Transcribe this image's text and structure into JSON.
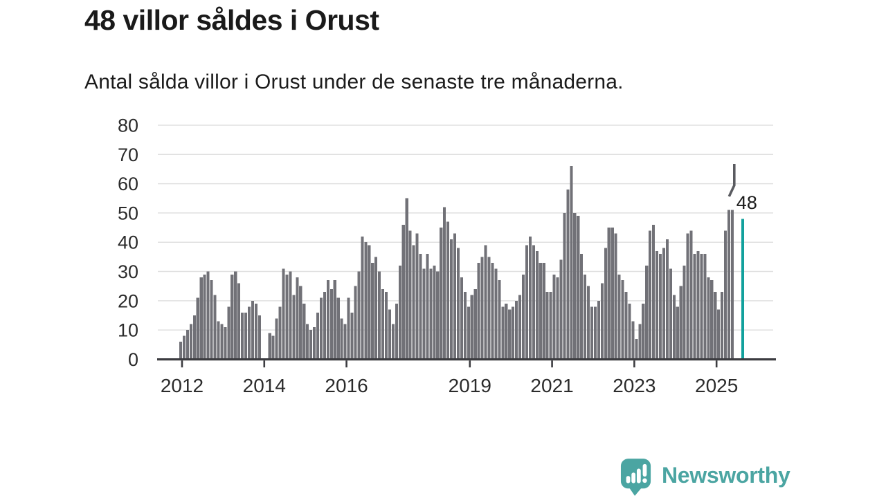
{
  "header": {
    "title": "48 villor såldes i Orust",
    "subtitle": "Antal sålda villor i Orust under de senaste tre månaderna."
  },
  "colors": {
    "background": "#ffffff",
    "bar": "#717177",
    "highlight": "#12a19d",
    "brand": "#4ba5a2",
    "grid": "#e0e0e0",
    "axis": "#3c3c40",
    "text": "#1a1a1a",
    "axis_label": "#2b2b2b",
    "annotation_line": "#5a5b60"
  },
  "chart_data": {
    "type": "bar",
    "title": "48 villor såldes i Orust",
    "subtitle": "Antal sålda villor i Orust under de senaste tre månaderna.",
    "xlabel": "",
    "ylabel": "",
    "grid": true,
    "ylim": [
      0,
      80
    ],
    "y_ticks": [
      0,
      10,
      20,
      30,
      40,
      50,
      60,
      70,
      80
    ],
    "x_tick_years": [
      2012,
      2014,
      2016,
      2019,
      2021,
      2023,
      2025
    ],
    "start_year": 2012,
    "frequency": "monthly",
    "monthly_values": [
      6,
      8,
      10,
      12,
      15,
      21,
      28,
      29,
      30,
      27,
      22,
      13,
      12,
      11,
      18,
      29,
      30,
      26,
      16,
      16,
      18,
      20,
      19,
      15,
      null,
      null,
      9,
      8,
      14,
      18,
      31,
      29,
      30,
      22,
      28,
      25,
      19,
      12,
      10,
      11,
      16,
      21,
      23,
      27,
      24,
      27,
      21,
      14,
      12,
      21,
      16,
      25,
      30,
      42,
      40,
      39,
      33,
      35,
      30,
      24,
      23,
      17,
      12,
      19,
      32,
      46,
      55,
      44,
      39,
      43,
      36,
      31,
      36,
      31,
      32,
      30,
      45,
      52,
      47,
      41,
      43,
      38,
      28,
      23,
      18,
      22,
      24,
      33,
      35,
      39,
      35,
      33,
      31,
      27,
      18,
      19,
      17,
      18,
      20,
      22,
      29,
      39,
      42,
      39,
      37,
      33,
      33,
      23,
      23,
      29,
      28,
      34,
      50,
      58,
      66,
      50,
      49,
      36,
      29,
      25,
      18,
      18,
      20,
      26,
      38,
      45,
      45,
      43,
      29,
      27,
      23,
      19,
      13,
      7,
      12,
      19,
      32,
      44,
      46,
      37,
      36,
      38,
      41,
      31,
      22,
      18,
      25,
      32,
      43,
      44,
      36,
      37,
      36,
      36,
      28,
      27,
      23,
      17,
      23,
      44,
      51,
      51
    ],
    "highlight": {
      "label": "48",
      "value": 48,
      "months_after_last": 3
    }
  },
  "footer": {
    "brand": "Newsworthy"
  }
}
